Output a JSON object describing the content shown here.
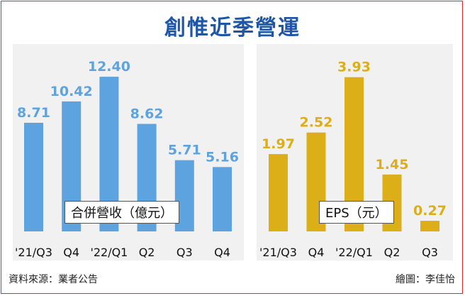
{
  "title": "創惟近季營運",
  "source_note": "資料來源：業者公告",
  "credit_note": "繪圖：李佳怡",
  "chart_data": [
    {
      "type": "bar",
      "legend": "合併營收（億元）",
      "categories": [
        "'21/Q3",
        "Q4",
        "'22/Q1",
        "Q2",
        "Q3",
        "Q4"
      ],
      "values": [
        8.71,
        10.42,
        12.4,
        8.62,
        5.71,
        5.16
      ],
      "labels": [
        "8.71",
        "10.42",
        "12.40",
        "8.62",
        "5.71",
        "5.16"
      ],
      "color": "#5ca3e0",
      "ylim": [
        0,
        14
      ]
    },
    {
      "type": "bar",
      "legend": "EPS（元）",
      "categories": [
        "'21/Q3",
        "Q4",
        "'22/Q1",
        "Q2",
        "Q3"
      ],
      "values": [
        1.97,
        2.52,
        3.93,
        1.45,
        0.27
      ],
      "labels": [
        "1.97",
        "2.52",
        "3.93",
        "1.45",
        "0.27"
      ],
      "color": "#dcae17",
      "ylim": [
        0,
        4.45
      ]
    }
  ]
}
